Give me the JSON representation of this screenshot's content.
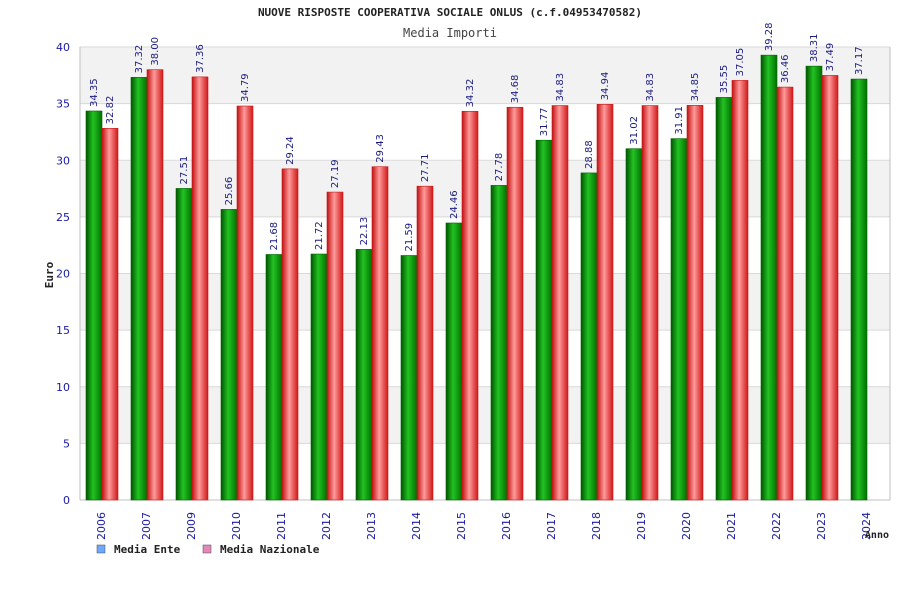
{
  "colors": {
    "series1": "#19b219",
    "series1_dark": "#006400",
    "series2": "#f04040",
    "series2_dark": "#c81818",
    "legend1": "#6fa8ff",
    "legend2": "#e389b9",
    "axis_text": "#1a1aa6",
    "band": "#f2f2f2",
    "grid": "#d9d9d9"
  },
  "chart_data": {
    "type": "bar",
    "title": "NUOVE RISPOSTE COOPERATIVA SOCIALE ONLUS (c.f.04953470582)",
    "subtitle": "Media Importi",
    "ylabel": "Euro",
    "xlabel": "Anno",
    "ylim": [
      0,
      40
    ],
    "yticks": [
      0,
      5,
      10,
      15,
      20,
      25,
      30,
      35,
      40
    ],
    "grid": true,
    "legend_position": "bottom-left",
    "categories": [
      "2006",
      "2007",
      "2009",
      "2010",
      "2011",
      "2012",
      "2013",
      "2014",
      "2015",
      "2016",
      "2017",
      "2018",
      "2019",
      "2020",
      "2021",
      "2022",
      "2023",
      "2024"
    ],
    "series": [
      {
        "name": "Media Ente",
        "values": [
          34.35,
          37.32,
          27.51,
          25.66,
          21.68,
          21.72,
          22.13,
          21.59,
          24.46,
          27.78,
          31.77,
          28.88,
          31.02,
          31.91,
          35.55,
          39.28,
          38.31,
          37.17
        ],
        "labels": [
          "34.35",
          "37.32",
          "27.51",
          "25.66",
          "21.68",
          "21.72",
          "22.13",
          "21.59",
          "24.46",
          "27.78",
          "31.77",
          "28.88",
          "31.02",
          "31.91",
          "35.55",
          "39.28",
          "38.31",
          "37.17"
        ]
      },
      {
        "name": "Media Nazionale",
        "values": [
          32.82,
          38.0,
          37.36,
          34.79,
          29.24,
          27.19,
          29.43,
          27.71,
          34.32,
          34.68,
          34.83,
          34.94,
          34.83,
          34.85,
          37.05,
          36.46,
          37.49,
          null
        ],
        "labels": [
          "32.82",
          "38.00",
          "37.36",
          "34.79",
          "29.24",
          "27.19",
          "29.43",
          "27.71",
          "34.32",
          "34.68",
          "34.83",
          "34.94",
          "34.83",
          "34.85",
          "37.05",
          "36.46",
          "37.49",
          ""
        ]
      }
    ]
  }
}
